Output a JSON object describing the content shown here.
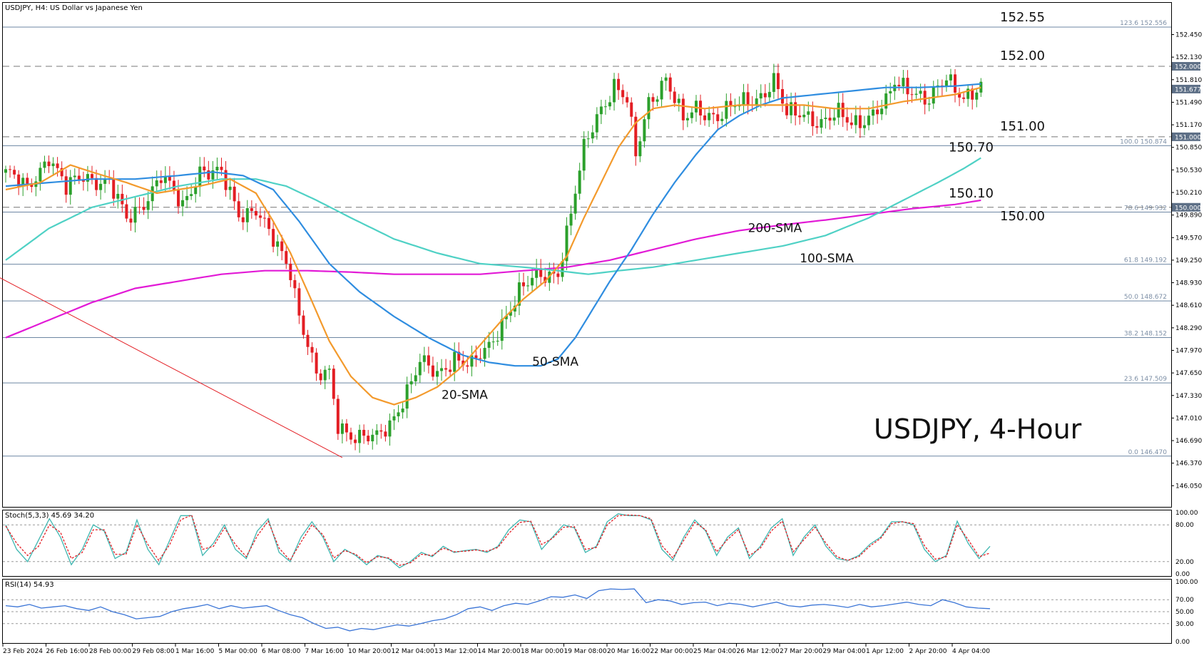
{
  "header": {
    "main_title": "USDJPY, H4:  US Dollar vs Japanese Yen",
    "stoch_title": "Stoch(5,3,3) 45.69 34.20",
    "rsi_title": "RSI(14) 54.93"
  },
  "watermark": "USDJPY, 4-Hour",
  "colors": {
    "bull": "#2ca02c",
    "bear": "#e31e24",
    "sma20": "#f39a2c",
    "sma50": "#2f8de0",
    "sma100": "#4fd1c5",
    "sma200": "#e21ad6",
    "level_line": "#6d86a3",
    "trendline": "#e31e24",
    "stoch_main": "#3fb6b0",
    "stoch_signal": "#e31e24",
    "rsi": "#3a74d6"
  },
  "chart_data": [
    {
      "type": "candlestick",
      "title": "USDJPY, H4:  US Dollar vs Japanese Yen",
      "ylim": [
        145.75,
        152.9
      ],
      "y_ticks": [
        "152.450",
        "152.130",
        "151.810",
        "151.490",
        "151.170",
        "150.850",
        "150.530",
        "150.210",
        "149.890",
        "149.570",
        "149.250",
        "148.930",
        "148.610",
        "148.290",
        "147.970",
        "147.650",
        "147.330",
        "147.010",
        "146.690",
        "146.370",
        "146.050"
      ],
      "x_labels": [
        "23 Feb 2024",
        "26 Feb 16:00",
        "28 Feb 00:00",
        "29 Feb 08:00",
        "1 Mar 16:00",
        "5 Mar 00:00",
        "6 Mar 08:00",
        "7 Mar 16:00",
        "10 Mar 20:00",
        "12 Mar 04:00",
        "13 Mar 12:00",
        "14 Mar 20:00",
        "18 Mar 00:00",
        "19 Mar 08:00",
        "20 Mar 16:00",
        "22 Mar 00:00",
        "25 Mar 04:00",
        "26 Mar 12:00",
        "27 Mar 20:00",
        "29 Mar 04:00",
        "1 Apr 12:00",
        "2 Apr 20:00",
        "4 Apr 04:00"
      ],
      "fib_levels": [
        {
          "label": "123.6 152.556",
          "value": 152.556
        },
        {
          "label": "100.0 150.874",
          "value": 150.874
        },
        {
          "label": "78.6 149.932",
          "value": 149.932
        },
        {
          "label": "61.8 149.192",
          "value": 149.192
        },
        {
          "label": "50.0 148.672",
          "value": 148.672
        },
        {
          "label": "38.2 148.152",
          "value": 148.152
        },
        {
          "label": "23.6 147.509",
          "value": 147.509
        },
        {
          "label": "0.0 146.470",
          "value": 146.47
        }
      ],
      "price_boxes": [
        {
          "label": "152.000",
          "value": 152.0
        },
        {
          "label": "151.677",
          "value": 151.677
        },
        {
          "label": "151.000",
          "value": 151.0
        },
        {
          "label": "150.000",
          "value": 150.0
        }
      ],
      "dashed_levels": [
        152.0,
        151.0,
        150.0
      ],
      "level_annotations": [
        {
          "label": "152.55",
          "value": 152.556
        },
        {
          "label": "152.00",
          "value": 152.0
        },
        {
          "label": "151.00",
          "value": 151.0
        },
        {
          "label": "150.70",
          "value": 150.7
        },
        {
          "label": "150.10",
          "value": 150.1
        },
        {
          "label": "150.00",
          "value": 150.0
        }
      ],
      "series_labels": [
        {
          "name": "20-SMA",
          "value": 147.28,
          "bar": 101
        },
        {
          "name": "50-SMA",
          "value": 147.75,
          "bar": 122
        },
        {
          "name": "200-SMA",
          "value": 149.65,
          "bar": 172
        },
        {
          "name": "100-SMA",
          "value": 149.22,
          "bar": 184
        }
      ],
      "trendline": [
        {
          "bar": 0,
          "value": 149.0
        },
        {
          "bar": 78,
          "value": 146.45
        }
      ],
      "ohlc_anchors": [
        [
          0,
          150.5
        ],
        [
          5,
          150.25
        ],
        [
          10,
          150.75
        ],
        [
          14,
          150.25
        ],
        [
          18,
          150.45
        ],
        [
          24,
          150.35
        ],
        [
          28,
          149.8
        ],
        [
          31,
          150.0
        ],
        [
          36,
          150.45
        ],
        [
          41,
          150.0
        ],
        [
          45,
          150.55
        ],
        [
          50,
          150.45
        ],
        [
          54,
          149.9
        ],
        [
          58,
          150.0
        ],
        [
          62,
          149.5
        ],
        [
          66,
          149.1
        ],
        [
          68,
          148.5
        ],
        [
          70,
          148.1
        ],
        [
          72,
          147.6
        ],
        [
          75,
          147.6
        ],
        [
          77,
          146.9
        ],
        [
          80,
          146.8
        ],
        [
          83,
          146.75
        ],
        [
          86,
          146.7
        ],
        [
          89,
          146.9
        ],
        [
          92,
          147.3
        ],
        [
          96,
          147.8
        ],
        [
          100,
          147.6
        ],
        [
          104,
          147.9
        ],
        [
          108,
          147.75
        ],
        [
          112,
          148.0
        ],
        [
          116,
          148.5
        ],
        [
          119,
          148.8
        ],
        [
          123,
          149.0
        ],
        [
          128,
          149.1
        ],
        [
          131,
          149.9
        ],
        [
          134,
          150.8
        ],
        [
          137,
          151.3
        ],
        [
          141,
          151.75
        ],
        [
          144,
          151.5
        ],
        [
          146,
          150.7
        ],
        [
          149,
          151.5
        ],
        [
          153,
          151.85
        ],
        [
          157,
          151.2
        ],
        [
          160,
          151.4
        ],
        [
          165,
          151.3
        ],
        [
          170,
          151.45
        ],
        [
          175,
          151.6
        ],
        [
          178,
          151.8
        ],
        [
          181,
          151.3
        ],
        [
          185,
          151.35
        ],
        [
          189,
          151.2
        ],
        [
          193,
          151.3
        ],
        [
          196,
          151.2
        ],
        [
          200,
          151.3
        ],
        [
          204,
          151.45
        ],
        [
          206,
          151.75
        ],
        [
          210,
          151.7
        ],
        [
          214,
          151.5
        ],
        [
          218,
          151.8
        ],
        [
          222,
          151.6
        ],
        [
          226,
          151.7
        ]
      ],
      "sma20_anchors": [
        [
          0,
          150.25
        ],
        [
          8,
          150.35
        ],
        [
          15,
          150.6
        ],
        [
          20,
          150.5
        ],
        [
          28,
          150.35
        ],
        [
          35,
          150.2
        ],
        [
          45,
          150.3
        ],
        [
          52,
          150.4
        ],
        [
          58,
          150.2
        ],
        [
          62,
          149.8
        ],
        [
          66,
          149.35
        ],
        [
          70,
          148.8
        ],
        [
          75,
          148.1
        ],
        [
          80,
          147.6
        ],
        [
          85,
          147.3
        ],
        [
          90,
          147.2
        ],
        [
          95,
          147.3
        ],
        [
          100,
          147.45
        ],
        [
          105,
          147.7
        ],
        [
          110,
          148.05
        ],
        [
          115,
          148.4
        ],
        [
          120,
          148.7
        ],
        [
          125,
          148.95
        ],
        [
          130,
          149.3
        ],
        [
          134,
          149.85
        ],
        [
          138,
          150.35
        ],
        [
          142,
          150.85
        ],
        [
          146,
          151.2
        ],
        [
          150,
          151.4
        ],
        [
          155,
          151.45
        ],
        [
          162,
          151.4
        ],
        [
          170,
          151.45
        ],
        [
          178,
          151.45
        ],
        [
          185,
          151.45
        ],
        [
          192,
          151.4
        ],
        [
          200,
          151.4
        ],
        [
          208,
          151.5
        ],
        [
          214,
          151.55
        ],
        [
          220,
          151.6
        ],
        [
          226,
          151.7
        ]
      ],
      "sma50_anchors": [
        [
          0,
          150.3
        ],
        [
          10,
          150.35
        ],
        [
          20,
          150.4
        ],
        [
          30,
          150.4
        ],
        [
          40,
          150.45
        ],
        [
          48,
          150.5
        ],
        [
          55,
          150.45
        ],
        [
          62,
          150.25
        ],
        [
          68,
          149.8
        ],
        [
          75,
          149.2
        ],
        [
          82,
          148.8
        ],
        [
          90,
          148.45
        ],
        [
          98,
          148.15
        ],
        [
          106,
          147.9
        ],
        [
          112,
          147.8
        ],
        [
          118,
          147.75
        ],
        [
          124,
          147.75
        ],
        [
          128,
          147.85
        ],
        [
          132,
          148.15
        ],
        [
          136,
          148.55
        ],
        [
          140,
          148.95
        ],
        [
          145,
          149.4
        ],
        [
          150,
          149.9
        ],
        [
          155,
          150.35
        ],
        [
          160,
          150.75
        ],
        [
          165,
          151.1
        ],
        [
          170,
          151.3
        ],
        [
          175,
          151.45
        ],
        [
          180,
          151.55
        ],
        [
          188,
          151.6
        ],
        [
          196,
          151.65
        ],
        [
          204,
          151.7
        ],
        [
          212,
          151.7
        ],
        [
          220,
          151.72
        ],
        [
          226,
          151.75
        ]
      ],
      "sma100_anchors": [
        [
          0,
          149.25
        ],
        [
          10,
          149.7
        ],
        [
          20,
          150.0
        ],
        [
          30,
          150.15
        ],
        [
          40,
          150.3
        ],
        [
          50,
          150.4
        ],
        [
          58,
          150.4
        ],
        [
          65,
          150.3
        ],
        [
          72,
          150.1
        ],
        [
          80,
          149.85
        ],
        [
          90,
          149.55
        ],
        [
          100,
          149.35
        ],
        [
          110,
          149.2
        ],
        [
          120,
          149.15
        ],
        [
          128,
          149.1
        ],
        [
          135,
          149.05
        ],
        [
          142,
          149.1
        ],
        [
          150,
          149.15
        ],
        [
          160,
          149.25
        ],
        [
          170,
          149.35
        ],
        [
          180,
          149.45
        ],
        [
          190,
          149.6
        ],
        [
          200,
          149.85
        ],
        [
          208,
          150.1
        ],
        [
          216,
          150.35
        ],
        [
          222,
          150.55
        ],
        [
          226,
          150.7
        ]
      ],
      "sma200_anchors": [
        [
          0,
          148.15
        ],
        [
          10,
          148.4
        ],
        [
          20,
          148.65
        ],
        [
          30,
          148.85
        ],
        [
          40,
          148.95
        ],
        [
          50,
          149.05
        ],
        [
          60,
          149.1
        ],
        [
          70,
          149.1
        ],
        [
          80,
          149.08
        ],
        [
          90,
          149.05
        ],
        [
          100,
          149.05
        ],
        [
          110,
          149.05
        ],
        [
          120,
          149.1
        ],
        [
          130,
          149.15
        ],
        [
          140,
          149.25
        ],
        [
          150,
          149.4
        ],
        [
          160,
          149.55
        ],
        [
          170,
          149.67
        ],
        [
          180,
          149.75
        ],
        [
          190,
          149.82
        ],
        [
          200,
          149.9
        ],
        [
          210,
          149.98
        ],
        [
          220,
          150.04
        ],
        [
          226,
          150.1
        ]
      ],
      "bar_count": 227
    },
    {
      "type": "line",
      "title": "Stoch(5,3,3) 45.69 34.20",
      "ylim": [
        0,
        100
      ],
      "y_ticks": [
        "100.00",
        "80.00",
        "20.00",
        "0.00"
      ],
      "levels": [
        80,
        20
      ],
      "series": [
        {
          "name": "",
          "values": [
            80,
            40,
            20,
            55,
            90,
            60,
            15,
            40,
            80,
            70,
            25,
            35,
            88,
            40,
            15,
            55,
            95,
            95,
            30,
            50,
            80,
            40,
            25,
            70,
            90,
            35,
            20,
            60,
            85,
            60,
            20,
            40,
            30,
            15,
            30,
            25,
            10,
            20,
            35,
            28,
            45,
            35,
            38,
            40,
            35,
            45,
            72,
            88,
            85,
            40,
            60,
            80,
            75,
            35,
            45,
            85,
            98,
            95,
            95,
            88,
            40,
            22,
            60,
            88,
            70,
            30,
            60,
            75,
            25,
            45,
            75,
            90,
            30,
            60,
            80,
            45,
            25,
            22,
            30,
            48,
            60,
            85,
            85,
            80,
            40,
            20,
            30,
            86,
            50,
            25,
            45
          ]
        },
        {
          "name": "",
          "values": [
            78,
            50,
            30,
            45,
            80,
            68,
            25,
            35,
            72,
            72,
            32,
            32,
            80,
            48,
            22,
            48,
            88,
            96,
            40,
            45,
            75,
            48,
            28,
            62,
            86,
            42,
            22,
            52,
            80,
            64,
            26,
            38,
            32,
            18,
            28,
            26,
            14,
            18,
            32,
            30,
            42,
            36,
            37,
            39,
            37,
            43,
            66,
            84,
            86,
            48,
            58,
            76,
            77,
            40,
            43,
            80,
            95,
            96,
            95,
            90,
            46,
            26,
            55,
            84,
            72,
            36,
            56,
            72,
            30,
            42,
            70,
            86,
            36,
            56,
            76,
            50,
            28,
            22,
            28,
            45,
            58,
            82,
            85,
            82,
            46,
            24,
            28,
            80,
            56,
            28,
            34
          ]
        }
      ]
    },
    {
      "type": "line",
      "title": "RSI(14) 54.93",
      "ylim": [
        0,
        100
      ],
      "y_ticks": [
        "100.00",
        "70.00",
        "50.00",
        "30.00",
        "0.00"
      ],
      "levels": [
        70,
        50,
        30
      ],
      "series": [
        {
          "name": "",
          "values": [
            60,
            58,
            62,
            56,
            58,
            60,
            55,
            52,
            58,
            50,
            45,
            38,
            40,
            42,
            50,
            55,
            58,
            62,
            55,
            60,
            56,
            58,
            60,
            52,
            45,
            40,
            30,
            22,
            24,
            18,
            22,
            20,
            24,
            28,
            26,
            30,
            35,
            38,
            45,
            55,
            58,
            52,
            60,
            64,
            62,
            68,
            75,
            74,
            78,
            72,
            85,
            88,
            87,
            88,
            65,
            70,
            68,
            62,
            65,
            66,
            60,
            64,
            62,
            58,
            62,
            66,
            60,
            58,
            61,
            62,
            60,
            57,
            62,
            58,
            60,
            63,
            66,
            62,
            60,
            70,
            65,
            58,
            56,
            55
          ]
        }
      ]
    }
  ]
}
